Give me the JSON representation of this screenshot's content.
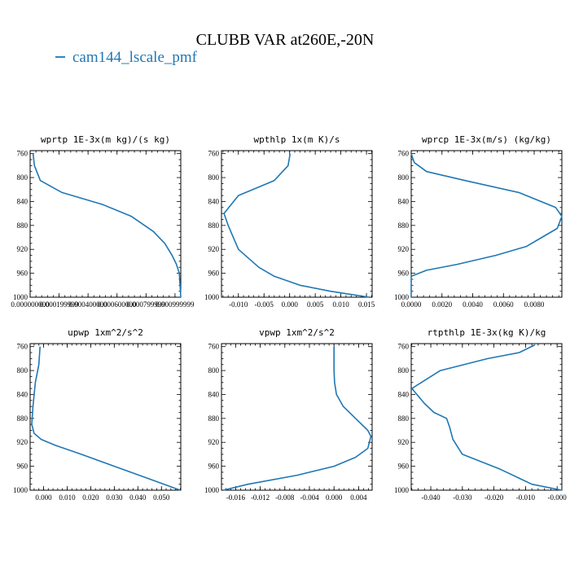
{
  "figure": {
    "title": "CLUBB VAR at260E,-20N",
    "legend_label": "cam144_lscale_pmf",
    "line_color": "#1f77b4"
  },
  "chart_data": [
    {
      "type": "line",
      "title": "wprtp  1E-3x(m kg)/(s kg)",
      "series": [
        {
          "name": "cam144_lscale_pmf",
          "x": [
            2e-05,
            3e-05,
            7e-05,
            0.00022,
            0.0005,
            0.0007,
            0.00085,
            0.00093,
            0.00098,
            0.00101,
            0.00103,
            0.00104
          ],
          "y": [
            760,
            780,
            805,
            825,
            845,
            865,
            890,
            910,
            930,
            945,
            960,
            1000
          ]
        }
      ],
      "xlim": [
        0.0,
        0.00104
      ],
      "ylim": [
        1000,
        755
      ],
      "xticks": [
        0.0,
        0.0002,
        0.0004,
        0.0006,
        0.0008,
        0.001
      ],
      "xtick_labels": [
        "0.000000000",
        "0.000199999",
        "0.000400000",
        "0.000600000",
        "0.000799999",
        "0.000999999"
      ],
      "yticks": [
        760,
        800,
        840,
        880,
        920,
        960,
        1000
      ]
    },
    {
      "type": "line",
      "title": "wpthlp  1x(m K)/s",
      "series": [
        {
          "name": "cam144_lscale_pmf",
          "x": [
            0.0001,
            -0.0003,
            -0.003,
            -0.01,
            -0.0128,
            -0.012,
            -0.01,
            -0.006,
            -0.003,
            0.002,
            0.008,
            0.0155
          ],
          "y": [
            760,
            780,
            805,
            830,
            860,
            880,
            920,
            950,
            965,
            980,
            990,
            1000
          ]
        }
      ],
      "xlim": [
        -0.0133,
        0.0161
      ],
      "ylim": [
        1000,
        755
      ],
      "xticks": [
        -0.01,
        -0.005,
        0.0,
        0.005,
        0.01,
        0.015
      ],
      "xtick_labels": [
        "-0.010",
        "-0.005",
        "0.000",
        "0.005",
        "0.010",
        "0.015"
      ],
      "yticks": [
        760,
        800,
        840,
        880,
        920,
        960,
        1000
      ]
    },
    {
      "type": "line",
      "title": "wprcp  1E-3x(m/s) (kg/kg)",
      "series": [
        {
          "name": "cam144_lscale_pmf",
          "x": [
            0.0,
            0.0002,
            0.001,
            0.0035,
            0.007,
            0.0094,
            0.0098,
            0.0095,
            0.0085,
            0.0075,
            0.0055,
            0.003,
            0.001,
            0.0,
            0.0
          ],
          "y": [
            760,
            775,
            790,
            805,
            825,
            850,
            865,
            885,
            900,
            915,
            930,
            945,
            955,
            965,
            1000
          ]
        }
      ],
      "xlim": [
        0.0,
        0.0098
      ],
      "ylim": [
        1000,
        755
      ],
      "xticks": [
        0.0,
        0.002,
        0.004,
        0.006,
        0.008
      ],
      "xtick_labels": [
        "0.0000",
        "0.0020",
        "0.0040",
        "0.0060",
        "0.0080"
      ],
      "yticks": [
        760,
        800,
        840,
        880,
        920,
        960,
        1000
      ]
    },
    {
      "type": "line",
      "title": "upwp  1xm^2/s^2",
      "series": [
        {
          "name": "cam144_lscale_pmf",
          "x": [
            -0.0015,
            -0.002,
            -0.0035,
            -0.0045,
            -0.005,
            -0.004,
            -0.001,
            0.005,
            0.016,
            0.03,
            0.044,
            0.058
          ],
          "y": [
            760,
            790,
            820,
            860,
            890,
            905,
            915,
            925,
            940,
            960,
            980,
            1000
          ]
        }
      ],
      "xlim": [
        -0.0057,
        0.0582
      ],
      "ylim": [
        1000,
        755
      ],
      "xticks": [
        0.0,
        0.01,
        0.02,
        0.03,
        0.04,
        0.05
      ],
      "xtick_labels": [
        "0.000",
        "0.010",
        "0.020",
        "0.030",
        "0.040",
        "0.050"
      ],
      "yticks": [
        760,
        800,
        840,
        880,
        920,
        960,
        1000
      ]
    },
    {
      "type": "line",
      "title": "vpwp  1xm^2/s^2",
      "series": [
        {
          "name": "cam144_lscale_pmf",
          "x": [
            0.0,
            0.0,
            0.0001,
            0.0004,
            0.0015,
            0.0035,
            0.0055,
            0.006,
            0.0055,
            0.0035,
            0.0,
            -0.006,
            -0.014,
            -0.018
          ],
          "y": [
            760,
            800,
            820,
            840,
            860,
            880,
            900,
            910,
            930,
            945,
            960,
            975,
            990,
            1000
          ]
        }
      ],
      "xlim": [
        -0.0183,
        0.0062
      ],
      "ylim": [
        1000,
        755
      ],
      "xticks": [
        -0.016,
        -0.012,
        -0.008,
        -0.004,
        0.0,
        0.004
      ],
      "xtick_labels": [
        "-0.016",
        "-0.012",
        "-0.008",
        "-0.004",
        "0.000",
        "0.004"
      ],
      "yticks": [
        760,
        800,
        840,
        880,
        920,
        960,
        1000
      ]
    },
    {
      "type": "line",
      "title": "rtpthlp  1E-3x(kg K)/kg",
      "series": [
        {
          "name": "cam144_lscale_pmf",
          "x": [
            -0.007,
            -0.012,
            -0.022,
            -0.037,
            -0.046,
            -0.042,
            -0.039,
            -0.035,
            -0.034,
            -0.033,
            -0.03,
            -0.018,
            -0.008,
            0.0015
          ],
          "y": [
            757,
            770,
            780,
            800,
            830,
            855,
            870,
            880,
            895,
            915,
            940,
            965,
            990,
            1000
          ]
        }
      ],
      "xlim": [
        -0.0462,
        0.0015
      ],
      "ylim": [
        1000,
        755
      ],
      "xticks": [
        -0.04,
        -0.03,
        -0.02,
        -0.01,
        0.0
      ],
      "xtick_labels": [
        "-0.040",
        "-0.030",
        "-0.020",
        "-0.010",
        "-0.000"
      ],
      "yticks": [
        760,
        800,
        840,
        880,
        920,
        960,
        1000
      ]
    }
  ]
}
